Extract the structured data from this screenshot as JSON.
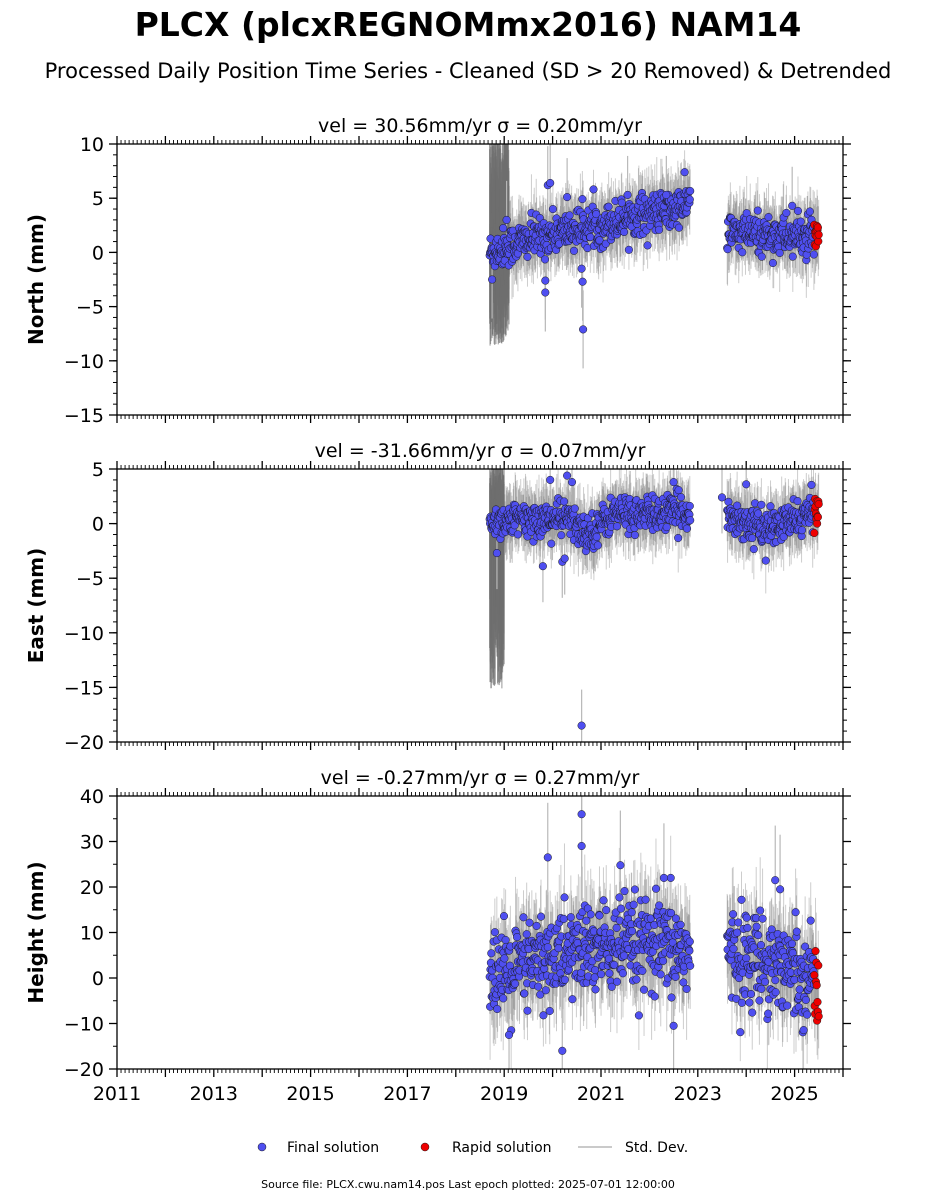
{
  "title": "PLCX (plcxREGNOMmx2016) NAM14",
  "subtitle": "Processed Daily Position Time Series - Cleaned (SD > 20 Removed) & Detrended",
  "legend": {
    "final": "Final solution",
    "rapid": "Rapid solution",
    "std": "Std. Dev."
  },
  "colors": {
    "final": "#4f4ff0",
    "rapid": "#ee0000",
    "std": "#b8b8b8",
    "std_dark": "#707070"
  },
  "footer": "Source file: PLCX.cwu.nam14.pos  Last epoch plotted: 2025-07-01 12:00:00",
  "chart_data": [
    {
      "type": "scatter",
      "component": "north",
      "title": "vel = 30.56mm/yr   σ = 0.20mm/yr",
      "ylabel": "North (mm)",
      "xlim": [
        2011,
        2026
      ],
      "ylim": [
        -15,
        10
      ],
      "yticks": [
        10,
        5,
        0,
        -5,
        -10,
        -15
      ],
      "xticks": [
        2011,
        2013,
        2015,
        2017,
        2019,
        2021,
        2023,
        2025
      ],
      "data_start": 2018.7,
      "gap": [
        2022.85,
        2023.6
      ],
      "final_end": 2025.4,
      "rapid_range": [
        2025.4,
        2025.5
      ],
      "trend": [
        [
          2018.7,
          0.0
        ],
        [
          2019.5,
          1.2
        ],
        [
          2020.3,
          2.0
        ],
        [
          2021.0,
          2.5
        ],
        [
          2021.8,
          3.6
        ],
        [
          2022.5,
          3.8
        ],
        [
          2022.85,
          4.8
        ],
        [
          2023.6,
          1.8
        ],
        [
          2024.5,
          1.6
        ],
        [
          2025.5,
          1.3
        ]
      ],
      "scatter": 0.9,
      "std": 1.2,
      "outliers": [
        [
          2018.75,
          -2.5
        ],
        [
          2019.05,
          3.0
        ],
        [
          2019.9,
          6.2
        ],
        [
          2019.95,
          6.4
        ],
        [
          2019.85,
          -2.6
        ],
        [
          2019.85,
          -3.7
        ],
        [
          2020.3,
          5.1
        ],
        [
          2020.6,
          -1.5
        ],
        [
          2020.62,
          -2.7
        ],
        [
          2020.63,
          -7.1
        ],
        [
          2024.95,
          4.3
        ],
        [
          2021.55,
          5.3
        ],
        [
          2022.35,
          5.3
        ]
      ],
      "spikes": [
        [
          2018.7,
          2019.1,
          10,
          8
        ]
      ]
    },
    {
      "type": "scatter",
      "component": "east",
      "title": "vel = -31.66mm/yr   σ = 0.07mm/yr",
      "ylabel": "East (mm)",
      "xlim": [
        2011,
        2026
      ],
      "ylim": [
        -20,
        5
      ],
      "yticks": [
        5,
        0,
        -5,
        -10,
        -15,
        -20
      ],
      "xticks": [
        2011,
        2013,
        2015,
        2017,
        2019,
        2021,
        2023,
        2025
      ],
      "data_start": 2018.7,
      "gap": [
        2022.85,
        2023.6
      ],
      "final_end": 2025.4,
      "rapid_range": [
        2025.4,
        2025.5
      ],
      "trend": [
        [
          2018.7,
          0.3
        ],
        [
          2019.5,
          0.3
        ],
        [
          2020.3,
          0.5
        ],
        [
          2020.7,
          -1.0
        ],
        [
          2021.3,
          1.0
        ],
        [
          2022.0,
          0.8
        ],
        [
          2022.85,
          1.2
        ],
        [
          2023.6,
          0.6
        ],
        [
          2024.5,
          -0.5
        ],
        [
          2025.5,
          1.2
        ]
      ],
      "scatter": 0.8,
      "std": 1.1,
      "outliers": [
        [
          2018.85,
          -2.7
        ],
        [
          2019.8,
          -3.9
        ],
        [
          2019.95,
          4.0
        ],
        [
          2020.3,
          4.4
        ],
        [
          2020.4,
          3.8
        ],
        [
          2020.2,
          -3.5
        ],
        [
          2020.25,
          -3.2
        ],
        [
          2020.6,
          -18.5
        ],
        [
          2023.5,
          2.4
        ],
        [
          2024.0,
          3.6
        ],
        [
          2022.5,
          3.8
        ]
      ],
      "spikes": [
        [
          2018.7,
          2019.0,
          5,
          14
        ]
      ]
    },
    {
      "type": "scatter",
      "component": "height",
      "title": "vel = -0.27mm/yr   σ = 0.27mm/yr",
      "ylabel": "Height (mm)",
      "xlim": [
        2011,
        2026
      ],
      "ylim": [
        -20,
        40
      ],
      "yticks": [
        40,
        30,
        20,
        10,
        0,
        -10,
        -20
      ],
      "xticks": [
        2011,
        2013,
        2015,
        2017,
        2019,
        2021,
        2023,
        2025
      ],
      "data_start": 2018.7,
      "gap": [
        2022.85,
        2023.6
      ],
      "final_end": 2025.4,
      "rapid_range": [
        2025.4,
        2025.5
      ],
      "trend": [
        [
          2018.7,
          3.0
        ],
        [
          2019.0,
          0.0
        ],
        [
          2019.5,
          3.0
        ],
        [
          2020.5,
          6.0
        ],
        [
          2021.5,
          7.0
        ],
        [
          2022.85,
          6.0
        ],
        [
          2023.6,
          5.0
        ],
        [
          2024.5,
          4.0
        ],
        [
          2025.5,
          0.0
        ]
      ],
      "scatter": 5.0,
      "std": 4.0,
      "outliers": [
        [
          2019.9,
          26.5
        ],
        [
          2020.6,
          36.0
        ],
        [
          2020.6,
          29.0
        ],
        [
          2021.4,
          24.8
        ],
        [
          2022.3,
          22.0
        ],
        [
          2020.2,
          -16.0
        ],
        [
          2022.5,
          -10.5
        ],
        [
          2019.1,
          -12.5
        ],
        [
          2024.6,
          21.5
        ],
        [
          2024.7,
          19.5
        ]
      ],
      "spikes": []
    }
  ]
}
